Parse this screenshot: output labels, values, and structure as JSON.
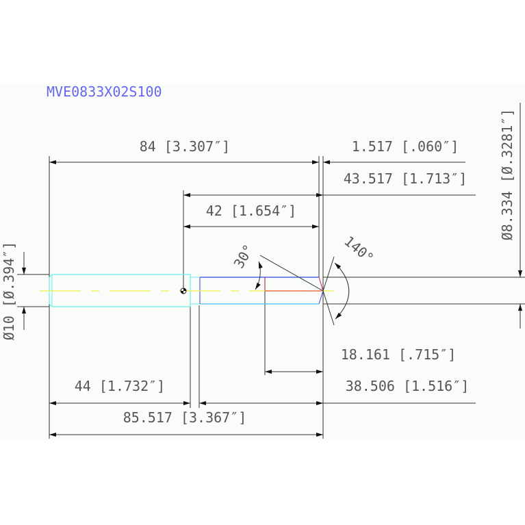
{
  "title": "MVE0833X02S100",
  "dimensions": {
    "overall_to_tip": "84 [3.307″]",
    "tip_offset": "1.517 [.060″]",
    "length_43": "43.517 [1.713″]",
    "length_42": "42 [1.654″]",
    "angle_30": "30°",
    "angle_140": "140°",
    "dia_right": "Ø8.334 [Ø.3281″]",
    "dia_left": "Ø10 [Ø.394″]",
    "length_18": "18.161 [.715″]",
    "length_38": "38.506 [1.516″]",
    "length_44": "44 [1.732″]",
    "overall_length": "85.517 [3.367″]"
  },
  "colors": {
    "background": "#fafcfa",
    "title": "#6666ee",
    "shank": "#66eeee",
    "flute_top": "#3344dd",
    "centerline": "#eeee44",
    "drill_point": "#ee5533"
  }
}
